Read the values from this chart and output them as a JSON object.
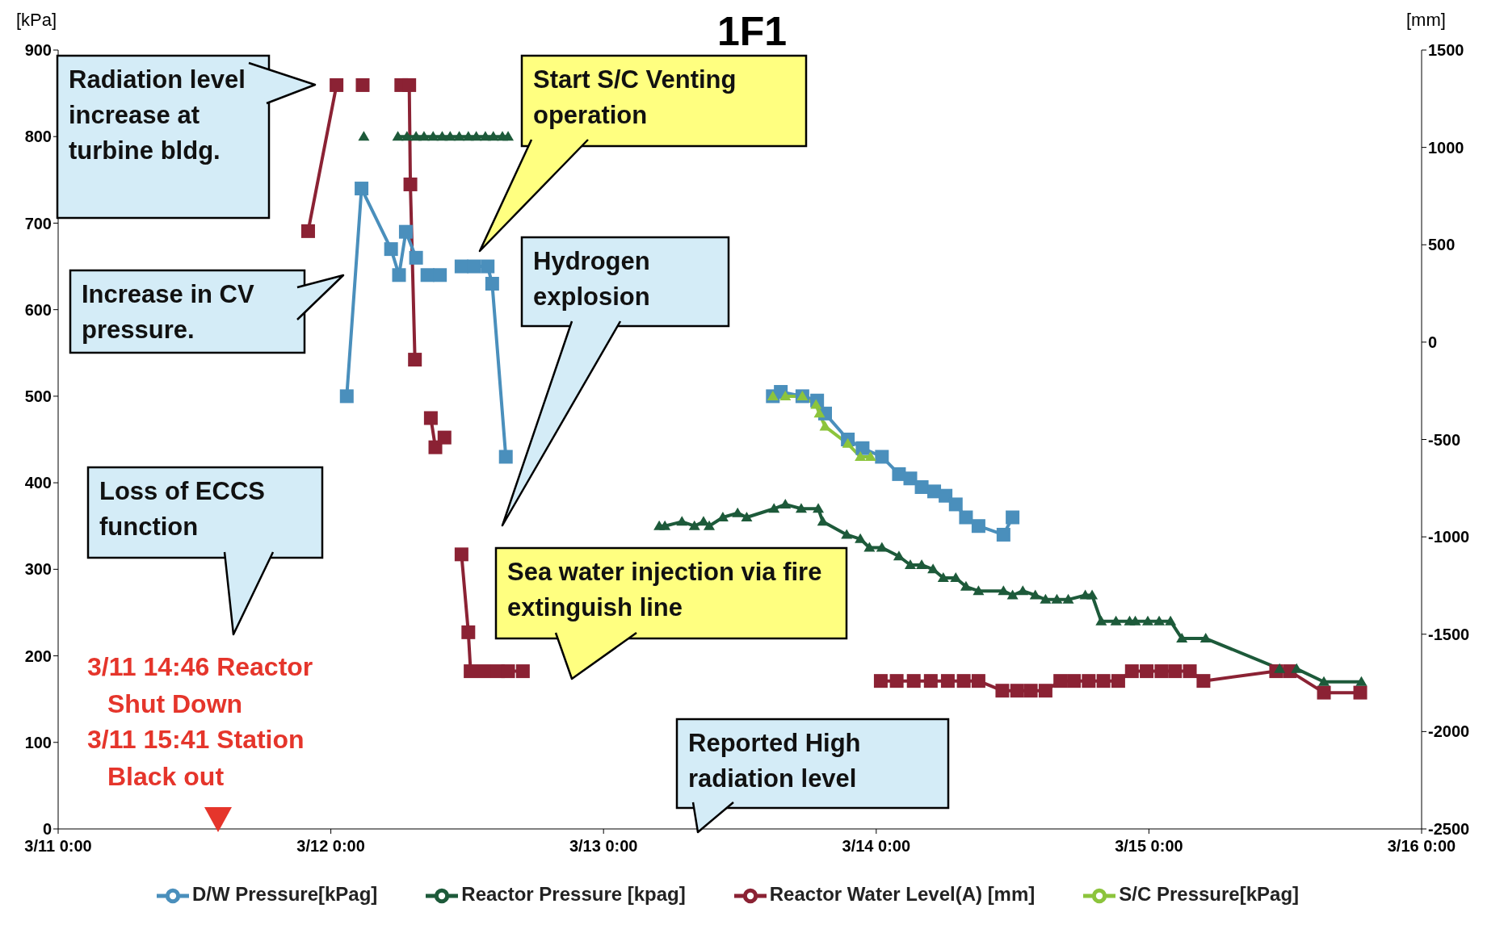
{
  "chart_data": {
    "type": "line",
    "title": "1F1",
    "ylabel": "[kPa]",
    "y2label": "[mm]",
    "xlim": [
      "--03-11T00:00",
      "--03-16T00:00"
    ],
    "xticks": [
      {
        "value": "--03-11T00:00",
        "label": "3/11 0:00"
      },
      {
        "value": "--03-12T00:00",
        "label": "3/12 0:00"
      },
      {
        "value": "--03-13T00:00",
        "label": "3/13 0:00"
      },
      {
        "value": "--03-14T00:00",
        "label": "3/14 0:00"
      },
      {
        "value": "--03-15T00:00",
        "label": "3/15 0:00"
      },
      {
        "value": "--03-16T00:00",
        "label": "3/16 0:00"
      }
    ],
    "ylim": [
      0,
      900
    ],
    "yticks": [
      0,
      100,
      200,
      300,
      400,
      500,
      600,
      700,
      800,
      900
    ],
    "y2lim": [
      -2500,
      1500
    ],
    "y2ticks": [
      -2500,
      -2000,
      -1500,
      -1000,
      -500,
      0,
      500,
      1000,
      1500
    ],
    "legend": "bottom",
    "series": [
      {
        "name": "D/W Pressure[kPag]",
        "color": "#4a8fbc",
        "marker": "square",
        "x": [
          "--03-12T01:24",
          "--03-12T02:42",
          "--03-12T05:18",
          "--03-12T06:00",
          "--03-12T06:36",
          "--03-12T07:30",
          "--03-12T08:00",
          "--03-12T08:30",
          "--03-12T09:36",
          "--03-12T10:30",
          "--03-12T11:30",
          "--03-12T12:36",
          "--03-12T13:48",
          "--03-12T14:12",
          "--03-12T15:24",
          "--03-13T02:00",
          "--03-13T14:54",
          "--03-13T15:36",
          "--03-13T17:30",
          "--03-13T18:48",
          "--03-13T19:30",
          "--03-13T21:30",
          "--03-13T22:48",
          "--03-14T00:30",
          "--03-14T02:00",
          "--03-14T03:00",
          "--03-14T04:00",
          "--03-14T05:06",
          "--03-14T06:06",
          "--03-14T07:00",
          "--03-14T07:54",
          "--03-14T09:00",
          "--03-14T11:12",
          "--03-14T12:00"
        ],
        "values": [
          500,
          740,
          670,
          640,
          690,
          660,
          null,
          640,
          640,
          null,
          650,
          650,
          650,
          630,
          430,
          null,
          500,
          505,
          500,
          495,
          480,
          450,
          440,
          430,
          410,
          405,
          395,
          390,
          385,
          375,
          360,
          350,
          340,
          360
        ]
      },
      {
        "name": "Reactor Pressure [kpag]",
        "color": "#1d5a3a",
        "marker": "triangle",
        "x": [
          "--03-12T02:54",
          "--03-12T04:30",
          "--03-12T05:54",
          "--03-12T06:42",
          "--03-12T07:30",
          "--03-12T08:12",
          "--03-12T09:00",
          "--03-12T09:48",
          "--03-12T10:30",
          "--03-12T11:18",
          "--03-12T12:06",
          "--03-12T12:48",
          "--03-12T13:36",
          "--03-12T14:18",
          "--03-12T15:06",
          "--03-12T15:36",
          "--03-12T22:00",
          "--03-13T04:54",
          "--03-13T05:24",
          "--03-13T06:54",
          "--03-13T08:00",
          "--03-13T08:48",
          "--03-13T09:18",
          "--03-13T10:30",
          "--03-13T11:48",
          "--03-13T12:36",
          "--03-13T15:00",
          "--03-13T16:00",
          "--03-13T17:24",
          "--03-13T18:54",
          "--03-13T19:18",
          "--03-13T21:24",
          "--03-13T22:36",
          "--03-13T23:24",
          "--03-14T00:30",
          "--03-14T02:00",
          "--03-14T03:00",
          "--03-14T04:00",
          "--03-14T05:00",
          "--03-14T05:54",
          "--03-14T07:00",
          "--03-14T07:54",
          "--03-14T09:00",
          "--03-14T11:12",
          "--03-14T12:00",
          "--03-14T12:54",
          "--03-14T14:00",
          "--03-14T14:54",
          "--03-14T15:54",
          "--03-14T16:54",
          "--03-14T18:24",
          "--03-14T19:00",
          "--03-14T19:48",
          "--03-14T21:06",
          "--03-14T22:18",
          "--03-14T22:48",
          "--03-14T23:54",
          "--03-15T00:54",
          "--03-15T01:54",
          "--03-15T02:54",
          "--03-15T05:00",
          "--03-15T11:30",
          "--03-15T13:00",
          "--03-15T15:24",
          "--03-15T18:42"
        ],
        "values": [
          800,
          null,
          800,
          800,
          800,
          800,
          800,
          800,
          800,
          800,
          800,
          800,
          800,
          800,
          800,
          800,
          null,
          350,
          350,
          355,
          350,
          355,
          350,
          360,
          365,
          360,
          370,
          375,
          370,
          370,
          355,
          340,
          335,
          325,
          325,
          315,
          305,
          305,
          300,
          290,
          290,
          280,
          275,
          275,
          270,
          275,
          270,
          265,
          265,
          265,
          270,
          270,
          240,
          240,
          240,
          240,
          240,
          240,
          240,
          220,
          220,
          185,
          185,
          170,
          170
        ]
      },
      {
        "name": "S/C Pressure[kPag]",
        "color": "#8cc43c",
        "marker": "triangle",
        "x": [
          "--03-13T14:54",
          "--03-13T16:00",
          "--03-13T17:30",
          "--03-13T18:42",
          "--03-13T19:00",
          "--03-13T19:30",
          "--03-13T21:30",
          "--03-13T22:36",
          "--03-13T23:30"
        ],
        "values": [
          500,
          500,
          500,
          490,
          480,
          465,
          445,
          430,
          430
        ]
      },
      {
        "name": "Reactor Water Level(A) [mm]",
        "color": "#8b2234",
        "marker": "square",
        "axis": "y2",
        "x": [
          "--03-11T22:00",
          "--03-12T00:30",
          "--03-12T01:36",
          "--03-12T02:48",
          "--03-12T04:30",
          "--03-12T06:12",
          "--03-12T06:54",
          "--03-12T07:00",
          "--03-12T07:24",
          "--03-12T08:06",
          "--03-12T08:48",
          "--03-12T09:12",
          "--03-12T10:00",
          "--03-12T10:42",
          "--03-12T11:30",
          "--03-12T12:06",
          "--03-12T12:18",
          "--03-12T13:30",
          "--03-12T14:42",
          "--03-12T15:36",
          "--03-12T16:54",
          "--03-13T08:00",
          "--03-14T00:24",
          "--03-14T01:48",
          "--03-14T03:18",
          "--03-14T04:48",
          "--03-14T06:18",
          "--03-14T07:42",
          "--03-14T09:00",
          "--03-14T11:06",
          "--03-14T12:24",
          "--03-14T13:36",
          "--03-14T14:54",
          "--03-14T16:12",
          "--03-14T17:24",
          "--03-14T18:42",
          "--03-14T20:00",
          "--03-14T21:18",
          "--03-14T22:30",
          "--03-14T23:48",
          "--03-15T01:06",
          "--03-15T02:18",
          "--03-15T03:36",
          "--03-15T04:48",
          "--03-15T11:12",
          "--03-15T12:24",
          "--03-15T15:24",
          "--03-15T18:36"
        ],
        "values": [
          570,
          1320,
          null,
          1320,
          null,
          1320,
          1320,
          810,
          -90,
          null,
          -390,
          -540,
          -490,
          null,
          -1090,
          -1490,
          -1690,
          -1690,
          -1690,
          -1690,
          -1690,
          null,
          -1740,
          -1740,
          -1740,
          -1740,
          -1740,
          -1740,
          -1740,
          -1790,
          -1790,
          -1790,
          -1790,
          -1740,
          -1740,
          -1740,
          -1740,
          -1740,
          -1690,
          -1690,
          -1690,
          -1690,
          -1690,
          -1740,
          -1690,
          -1690,
          -1800,
          -1800
        ]
      }
    ],
    "annotations": [
      "Radiation level increase at turbine bldg.",
      "Increase in CV pressure.",
      "Loss of ECCS function",
      "3/11 14:46 Reactor Shut Down",
      "3/11 15:41 Station Black out",
      "Start S/C Venting operation",
      "Hydrogen explosion",
      "Sea water injection via fire extinguish line",
      "Reported High radiation level"
    ]
  }
}
